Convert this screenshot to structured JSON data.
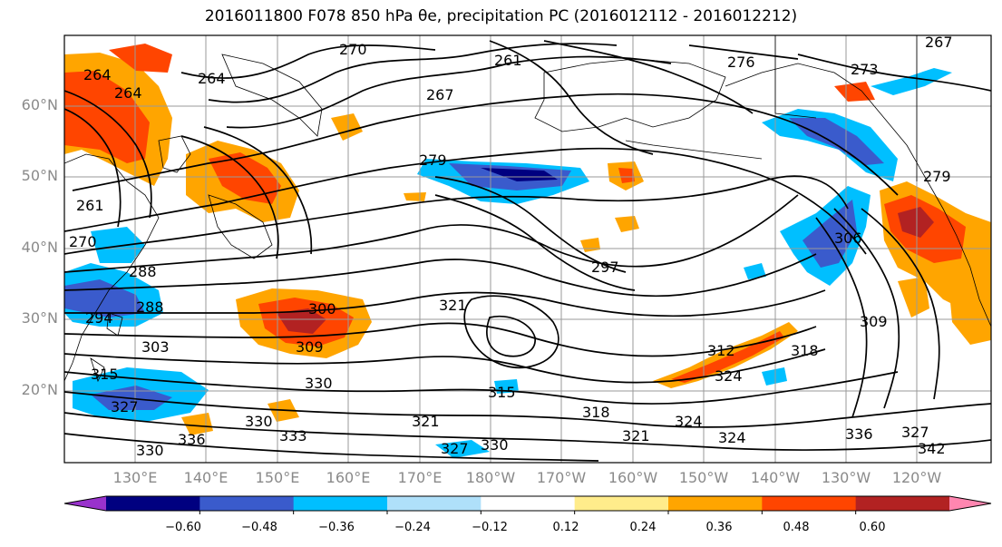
{
  "title": "2016011800 F078 850 hPa θe, precipitation PC (2016012112 - 2016012212)",
  "latitude_labels": [
    "60°N",
    "50°N",
    "40°N",
    "30°N",
    "20°N"
  ],
  "longitude_labels": [
    "130°E",
    "140°E",
    "150°E",
    "160°E",
    "170°E",
    "180°W",
    "170°W",
    "160°W",
    "150°W",
    "140°W",
    "130°W",
    "120°W"
  ],
  "contour_labels": [
    "270",
    "264",
    "264",
    "261",
    "264",
    "267",
    "279",
    "276",
    "273",
    "267",
    "261",
    "270",
    "279",
    "288",
    "288",
    "294",
    "300",
    "297",
    "306",
    "303",
    "309",
    "309",
    "315",
    "312",
    "318",
    "321",
    "324",
    "327",
    "330",
    "330",
    "333",
    "336",
    "330",
    "327",
    "321",
    "318",
    "315",
    "321",
    "324",
    "324",
    "330",
    "327",
    "336",
    "342"
  ],
  "colorbar": {
    "tick_labels": [
      "−0.60",
      "−0.48",
      "−0.36",
      "−0.24",
      "−0.12",
      "0.12",
      "0.24",
      "0.36",
      "0.48",
      "0.60"
    ],
    "colors": [
      "#9932cc",
      "#000080",
      "#3a5bcc",
      "#00bfff",
      "#afe0fa",
      "#ffffff",
      "#ffec8b",
      "#ffa500",
      "#ff4500",
      "#b22222",
      "#ff86b0"
    ]
  }
}
